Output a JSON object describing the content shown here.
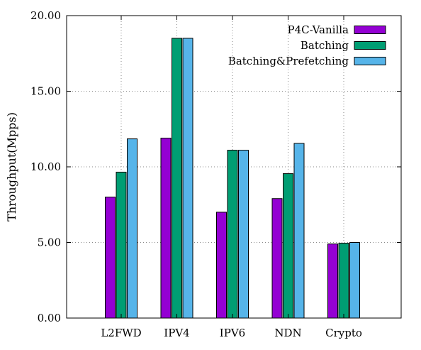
{
  "chart_data": {
    "type": "bar",
    "ylabel": "Throughput(Mpps)",
    "xlabel": "",
    "title": "",
    "ylim": [
      0,
      20
    ],
    "yticks": [
      "0.00",
      "5.00",
      "10.00",
      "15.00",
      "20.00"
    ],
    "ytick_values": [
      0,
      5,
      10,
      15,
      20
    ],
    "grid": true,
    "legend_position": "top-right",
    "categories": [
      "L2FWD",
      "IPV4",
      "IPV6",
      "NDN",
      "Crypto"
    ],
    "series": [
      {
        "name": "P4C-Vanilla",
        "color": "#9400d3",
        "values": [
          8.0,
          11.9,
          7.0,
          7.9,
          4.9
        ]
      },
      {
        "name": "Batching",
        "color": "#009e73",
        "values": [
          9.65,
          18.5,
          11.1,
          9.55,
          4.95
        ]
      },
      {
        "name": "Batching&Prefetching",
        "color": "#56b4e9",
        "values": [
          11.85,
          18.5,
          11.1,
          11.55,
          5.0
        ]
      }
    ]
  }
}
